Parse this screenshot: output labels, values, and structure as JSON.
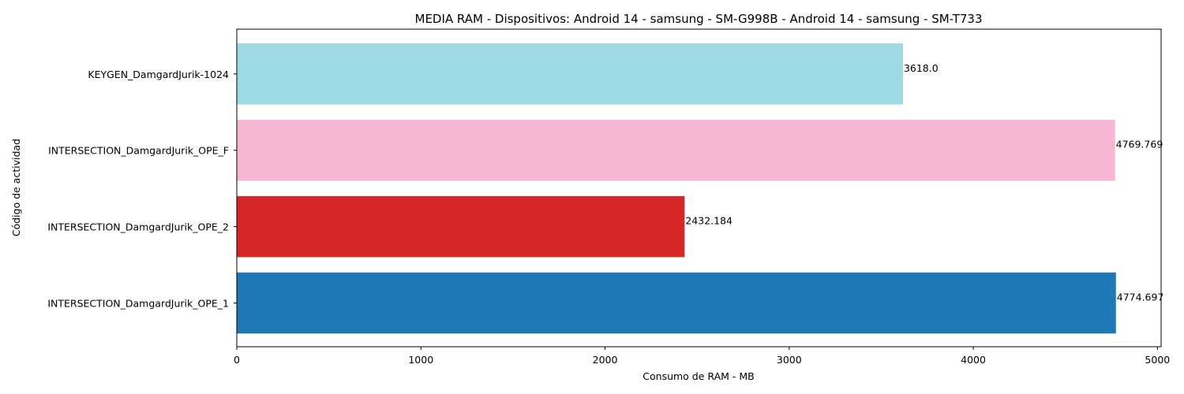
{
  "chart_data": {
    "type": "bar",
    "orientation": "horizontal",
    "title": "MEDIA RAM - Dispositivos: Android 14 - samsung - SM-G998B - Android 14 - samsung - SM-T733",
    "xlabel": "Consumo de RAM - MB",
    "ylabel": "Código de actividad",
    "xlim": [
      0,
      5020
    ],
    "xticks": [
      0,
      1000,
      2000,
      3000,
      4000,
      5000
    ],
    "grid": false,
    "categories": [
      "INTERSECTION_DamgardJurik_OPE_1",
      "INTERSECTION_DamgardJurik_OPE_2",
      "INTERSECTION_DamgardJurik_OPE_F",
      "KEYGEN_DamgardJurik-1024"
    ],
    "values": [
      4774.697,
      2432.184,
      4769.769,
      3618.0
    ],
    "value_labels": [
      "4774.697",
      "2432.184",
      "4769.769",
      "3618.0"
    ],
    "colors": [
      "#1f77b4",
      "#d62728",
      "#f7b6d2",
      "#9edae5"
    ]
  }
}
